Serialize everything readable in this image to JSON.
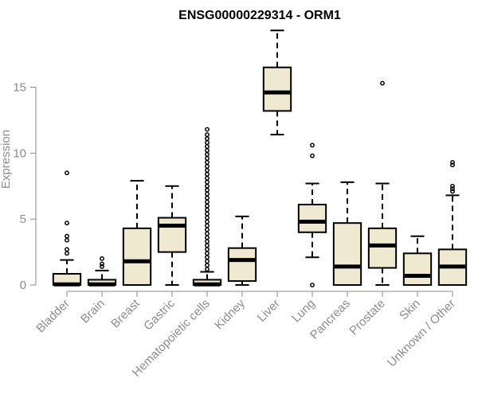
{
  "chart_data": {
    "type": "boxplot",
    "title": "ENSG00000229314 - ORM1",
    "ylabel": "Expression",
    "xlabel": "",
    "ylim": [
      -0.6,
      19.8
    ],
    "yticks": [
      0,
      5,
      10,
      15
    ],
    "box_color": "#f0e9d2",
    "categories": [
      {
        "name": "Bladder",
        "whisker_low": 0,
        "q1": 0,
        "median": 0.05,
        "q3": 0.85,
        "whisker_high": 1.9,
        "outliers": [
          2.4,
          2.7,
          3.4,
          3.7,
          4.7,
          8.5
        ]
      },
      {
        "name": "Brain",
        "whisker_low": 0,
        "q1": 0,
        "median": 0.05,
        "q3": 0.4,
        "whisker_high": 1.1,
        "outliers": [
          1.4,
          1.6,
          2.0
        ]
      },
      {
        "name": "Breast",
        "whisker_low": 0,
        "q1": 0,
        "median": 1.8,
        "q3": 4.3,
        "whisker_high": 7.9,
        "outliers": []
      },
      {
        "name": "Gastric",
        "whisker_low": 0,
        "q1": 2.5,
        "median": 4.5,
        "q3": 5.1,
        "whisker_high": 7.5,
        "outliers": []
      },
      {
        "name": "Hematopoietic cells",
        "whisker_low": 0,
        "q1": 0,
        "median": 0.05,
        "q3": 0.4,
        "whisker_high": 1.0,
        "outliers": [
          1.2,
          1.5,
          1.8,
          2.1,
          2.4,
          2.7,
          3.0,
          3.3,
          3.6,
          3.9,
          4.2,
          4.5,
          4.8,
          5.1,
          5.4,
          5.7,
          6.0,
          6.3,
          6.6,
          6.9,
          7.2,
          7.5,
          7.8,
          8.1,
          8.4,
          8.7,
          9.0,
          9.3,
          9.6,
          9.9,
          10.2,
          10.5,
          10.8,
          11.1,
          11.4,
          11.8
        ]
      },
      {
        "name": "Kidney",
        "whisker_low": 0,
        "q1": 0.3,
        "median": 1.9,
        "q3": 2.8,
        "whisker_high": 5.2,
        "outliers": []
      },
      {
        "name": "Liver",
        "whisker_low": 11.4,
        "q1": 13.2,
        "median": 14.6,
        "q3": 16.5,
        "whisker_high": 19.3,
        "outliers": []
      },
      {
        "name": "Lung",
        "whisker_low": 2.1,
        "q1": 4.0,
        "median": 4.8,
        "q3": 6.1,
        "whisker_high": 7.7,
        "outliers": [
          0,
          9.8,
          10.6
        ]
      },
      {
        "name": "Pancreas",
        "whisker_low": 0,
        "q1": 0,
        "median": 1.4,
        "q3": 4.7,
        "whisker_high": 7.8,
        "outliers": []
      },
      {
        "name": "Prostate",
        "whisker_low": 0,
        "q1": 1.3,
        "median": 3.0,
        "q3": 4.3,
        "whisker_high": 7.7,
        "outliers": [
          15.3
        ]
      },
      {
        "name": "Skin",
        "whisker_low": 0,
        "q1": 0,
        "median": 0.7,
        "q3": 2.4,
        "whisker_high": 3.7,
        "outliers": []
      },
      {
        "name": "Unknown / Other",
        "whisker_low": 0,
        "q1": 0,
        "median": 1.4,
        "q3": 2.7,
        "whisker_high": 6.8,
        "outliers": [
          7.1,
          7.3,
          7.5,
          9.1,
          9.3
        ]
      }
    ]
  }
}
